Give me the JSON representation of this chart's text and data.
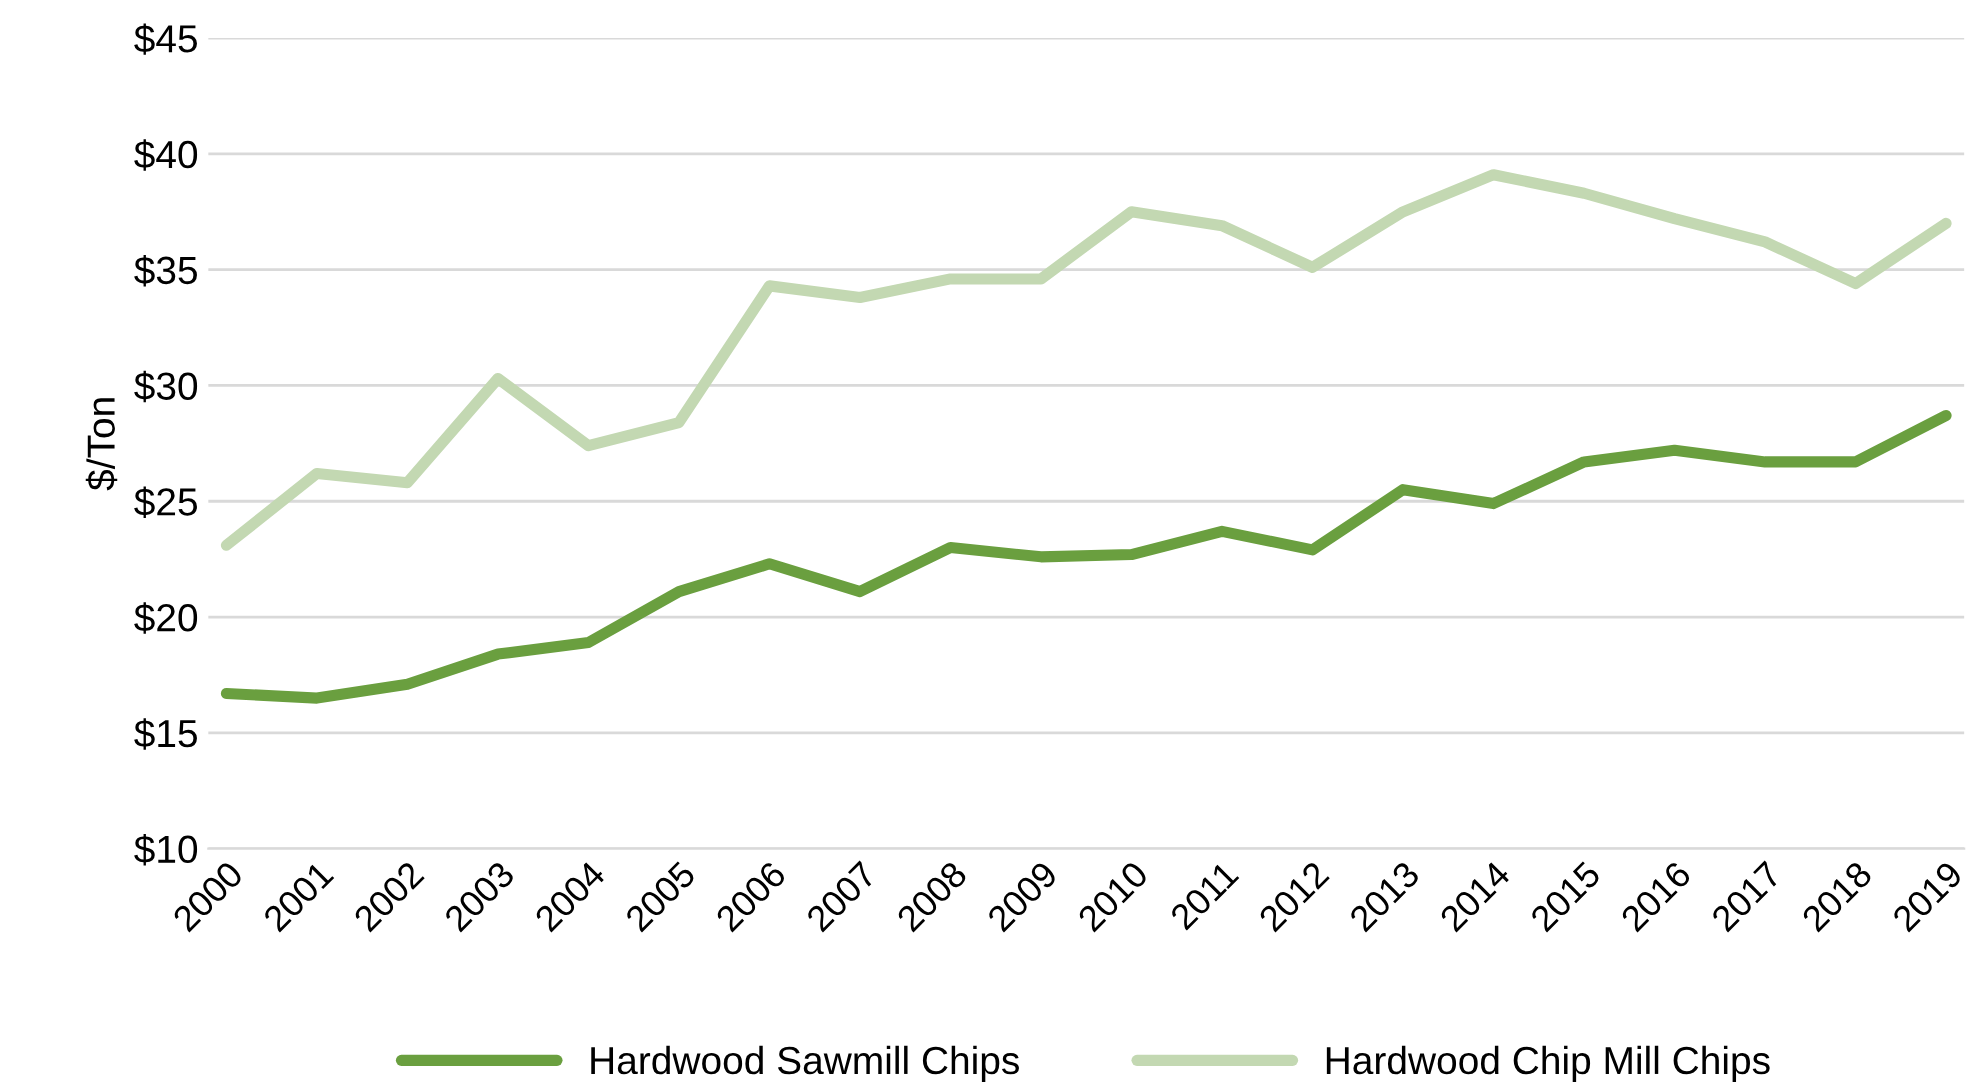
{
  "chart_data": {
    "type": "line",
    "ylabel": "$/Ton",
    "categories": [
      "2000",
      "2001",
      "2002",
      "2003",
      "2004",
      "2005",
      "2006",
      "2007",
      "2008",
      "2009",
      "2010",
      "2011",
      "2012",
      "2013",
      "2014",
      "2015",
      "2016",
      "2017",
      "2018",
      "2019"
    ],
    "series": [
      {
        "name": "Hardwood Sawmill Chips",
        "color": "#6a9f3f",
        "values": [
          16.7,
          16.5,
          17.1,
          18.4,
          18.9,
          21.1,
          22.3,
          21.1,
          23.0,
          22.6,
          22.7,
          23.7,
          22.9,
          25.5,
          24.9,
          26.7,
          27.2,
          26.7,
          26.7,
          28.7
        ]
      },
      {
        "name": "Hardwood Chip Mill Chips",
        "color": "#c3d8b2",
        "values": [
          23.1,
          26.2,
          25.8,
          30.3,
          27.4,
          28.4,
          34.3,
          33.8,
          34.6,
          34.6,
          37.5,
          36.9,
          35.1,
          37.5,
          39.1,
          38.3,
          37.2,
          36.2,
          34.4,
          37.0
        ]
      }
    ],
    "ylim": [
      10,
      45
    ],
    "yticks": [
      {
        "value": 10,
        "label": "$10"
      },
      {
        "value": 15,
        "label": "$15"
      },
      {
        "value": 20,
        "label": "$20"
      },
      {
        "value": 25,
        "label": "$25"
      },
      {
        "value": 30,
        "label": "$30"
      },
      {
        "value": 35,
        "label": "$35"
      },
      {
        "value": 40,
        "label": "$40"
      },
      {
        "value": 45,
        "label": "$45"
      }
    ],
    "grid": "y",
    "legend": "bottom",
    "marker": "none",
    "line_style": "solid"
  }
}
